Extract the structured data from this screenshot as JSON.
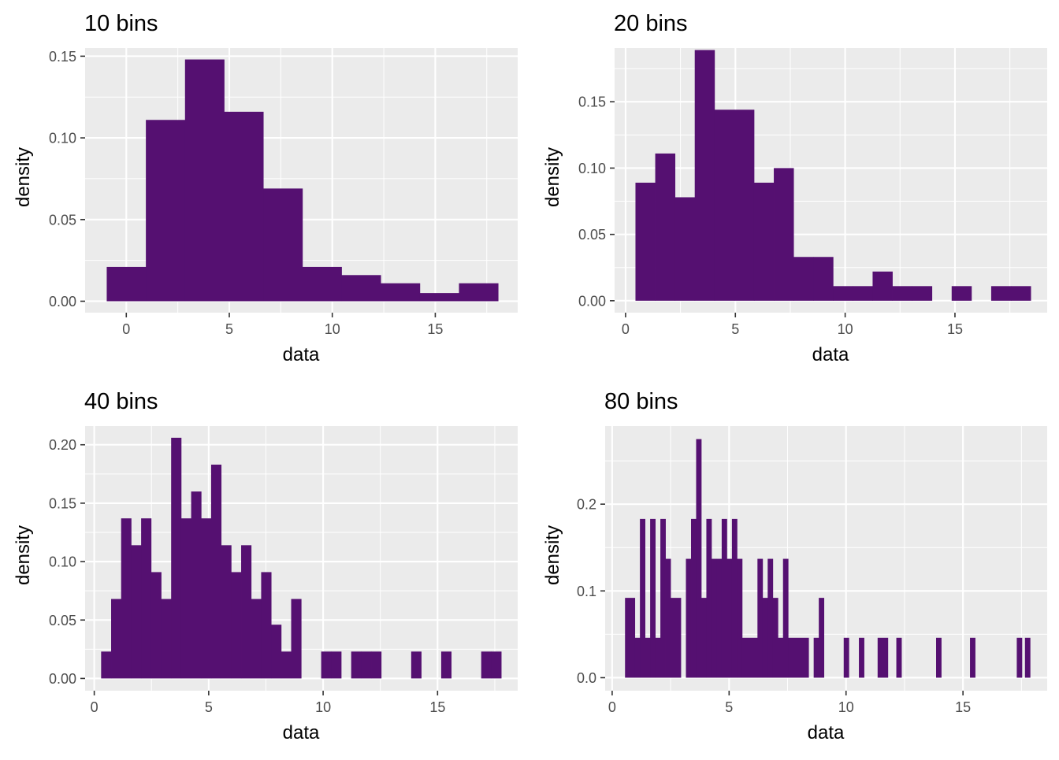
{
  "colors": {
    "bar_fill": "#551071",
    "panel_background": "#ebebeb",
    "grid": "#ffffff"
  },
  "chart_data": [
    {
      "type": "bar",
      "title": "10 bins",
      "xlabel": "data",
      "ylabel": "density",
      "xlim": [
        -2,
        19.0
      ],
      "ylim": [
        -0.007,
        0.155
      ],
      "x_ticks": [
        0,
        5,
        10,
        15
      ],
      "x_tick_labels": [
        "0",
        "5",
        "10",
        "15"
      ],
      "y_ticks": [
        0,
        0.05,
        0.1,
        0.15
      ],
      "y_tick_labels": [
        "0.00",
        "0.05",
        "0.10",
        "0.15"
      ],
      "grid": true,
      "bin_width": 1.9,
      "bins": [
        {
          "x0": -0.95,
          "x1": 0.95,
          "density": 0.021
        },
        {
          "x0": 0.95,
          "x1": 2.85,
          "density": 0.111
        },
        {
          "x0": 2.85,
          "x1": 4.75,
          "density": 0.148
        },
        {
          "x0": 4.75,
          "x1": 6.65,
          "density": 0.116
        },
        {
          "x0": 6.65,
          "x1": 8.55,
          "density": 0.069
        },
        {
          "x0": 8.55,
          "x1": 10.45,
          "density": 0.021
        },
        {
          "x0": 10.45,
          "x1": 12.35,
          "density": 0.016
        },
        {
          "x0": 12.35,
          "x1": 14.25,
          "density": 0.011
        },
        {
          "x0": 14.25,
          "x1": 16.15,
          "density": 0.005
        },
        {
          "x0": 16.15,
          "x1": 18.05,
          "density": 0.011
        }
      ]
    },
    {
      "type": "bar",
      "title": "20 bins",
      "xlabel": "data",
      "ylabel": "density",
      "xlim": [
        -0.5,
        19.2
      ],
      "ylim": [
        -0.009,
        0.1905
      ],
      "x_ticks": [
        0,
        5,
        10,
        15
      ],
      "x_tick_labels": [
        "0",
        "5",
        "10",
        "15"
      ],
      "y_ticks": [
        0,
        0.05,
        0.1,
        0.15
      ],
      "y_tick_labels": [
        "0.00",
        "0.05",
        "0.10",
        "0.15"
      ],
      "grid": true,
      "bin_width": 0.9,
      "bins": [
        {
          "x0": 0.45,
          "x1": 1.35,
          "density": 0.089
        },
        {
          "x0": 1.35,
          "x1": 2.25,
          "density": 0.111
        },
        {
          "x0": 2.25,
          "x1": 3.15,
          "density": 0.078
        },
        {
          "x0": 3.15,
          "x1": 4.05,
          "density": 0.189
        },
        {
          "x0": 4.05,
          "x1": 4.95,
          "density": 0.144
        },
        {
          "x0": 4.95,
          "x1": 5.85,
          "density": 0.144
        },
        {
          "x0": 5.85,
          "x1": 6.75,
          "density": 0.089
        },
        {
          "x0": 6.75,
          "x1": 7.65,
          "density": 0.1
        },
        {
          "x0": 7.65,
          "x1": 8.55,
          "density": 0.033
        },
        {
          "x0": 8.55,
          "x1": 9.45,
          "density": 0.033
        },
        {
          "x0": 9.45,
          "x1": 10.35,
          "density": 0.011
        },
        {
          "x0": 10.35,
          "x1": 11.25,
          "density": 0.011
        },
        {
          "x0": 11.25,
          "x1": 12.15,
          "density": 0.022
        },
        {
          "x0": 12.15,
          "x1": 13.05,
          "density": 0.011
        },
        {
          "x0": 13.05,
          "x1": 13.95,
          "density": 0.011
        },
        {
          "x0": 13.95,
          "x1": 14.85,
          "density": 0.0
        },
        {
          "x0": 14.85,
          "x1": 15.75,
          "density": 0.011
        },
        {
          "x0": 15.75,
          "x1": 16.65,
          "density": 0.0
        },
        {
          "x0": 16.65,
          "x1": 17.55,
          "density": 0.011
        },
        {
          "x0": 17.55,
          "x1": 18.45,
          "density": 0.011
        }
      ]
    },
    {
      "type": "bar",
      "title": "40 bins",
      "xlabel": "data",
      "ylabel": "density",
      "xlim": [
        -0.4,
        18.5
      ],
      "ylim": [
        -0.0105,
        0.216
      ],
      "x_ticks": [
        0,
        5,
        10,
        15
      ],
      "x_tick_labels": [
        "0",
        "5",
        "10",
        "15"
      ],
      "y_ticks": [
        0,
        0.05,
        0.1,
        0.15,
        0.2
      ],
      "y_tick_labels": [
        "0.00",
        "0.05",
        "0.10",
        "0.15",
        "0.20"
      ],
      "grid": true,
      "bin_width": 0.437,
      "bins": [
        {
          "x0": 0.3,
          "x1": 0.737,
          "density": 0.023
        },
        {
          "x0": 0.737,
          "x1": 1.174,
          "density": 0.068
        },
        {
          "x0": 1.174,
          "x1": 1.611,
          "density": 0.137
        },
        {
          "x0": 1.611,
          "x1": 2.048,
          "density": 0.114
        },
        {
          "x0": 2.048,
          "x1": 2.485,
          "density": 0.137
        },
        {
          "x0": 2.485,
          "x1": 2.922,
          "density": 0.091
        },
        {
          "x0": 2.922,
          "x1": 3.359,
          "density": 0.068
        },
        {
          "x0": 3.359,
          "x1": 3.796,
          "density": 0.206
        },
        {
          "x0": 3.796,
          "x1": 4.233,
          "density": 0.137
        },
        {
          "x0": 4.233,
          "x1": 4.67,
          "density": 0.16
        },
        {
          "x0": 4.67,
          "x1": 5.107,
          "density": 0.137
        },
        {
          "x0": 5.107,
          "x1": 5.544,
          "density": 0.183
        },
        {
          "x0": 5.544,
          "x1": 5.981,
          "density": 0.114
        },
        {
          "x0": 5.981,
          "x1": 6.418,
          "density": 0.091
        },
        {
          "x0": 6.418,
          "x1": 6.855,
          "density": 0.114
        },
        {
          "x0": 6.855,
          "x1": 7.292,
          "density": 0.068
        },
        {
          "x0": 7.292,
          "x1": 7.729,
          "density": 0.091
        },
        {
          "x0": 7.729,
          "x1": 8.166,
          "density": 0.046
        },
        {
          "x0": 8.166,
          "x1": 8.603,
          "density": 0.023
        },
        {
          "x0": 8.603,
          "x1": 9.04,
          "density": 0.068
        },
        {
          "x0": 9.04,
          "x1": 9.477,
          "density": 0.0
        },
        {
          "x0": 9.477,
          "x1": 9.914,
          "density": 0.0
        },
        {
          "x0": 9.914,
          "x1": 10.351,
          "density": 0.023
        },
        {
          "x0": 10.351,
          "x1": 10.788,
          "density": 0.023
        },
        {
          "x0": 10.788,
          "x1": 11.225,
          "density": 0.0
        },
        {
          "x0": 11.225,
          "x1": 11.662,
          "density": 0.023
        },
        {
          "x0": 11.662,
          "x1": 12.099,
          "density": 0.023
        },
        {
          "x0": 12.099,
          "x1": 12.536,
          "density": 0.023
        },
        {
          "x0": 12.536,
          "x1": 12.973,
          "density": 0.0
        },
        {
          "x0": 12.973,
          "x1": 13.41,
          "density": 0.0
        },
        {
          "x0": 13.41,
          "x1": 13.847,
          "density": 0.0
        },
        {
          "x0": 13.847,
          "x1": 14.284,
          "density": 0.023
        },
        {
          "x0": 14.284,
          "x1": 14.721,
          "density": 0.0
        },
        {
          "x0": 14.721,
          "x1": 15.158,
          "density": 0.0
        },
        {
          "x0": 15.158,
          "x1": 15.595,
          "density": 0.023
        },
        {
          "x0": 15.595,
          "x1": 16.032,
          "density": 0.0
        },
        {
          "x0": 16.032,
          "x1": 16.469,
          "density": 0.0
        },
        {
          "x0": 16.469,
          "x1": 16.906,
          "density": 0.0
        },
        {
          "x0": 16.906,
          "x1": 17.343,
          "density": 0.023
        },
        {
          "x0": 17.343,
          "x1": 17.78,
          "density": 0.023
        }
      ]
    },
    {
      "type": "bar",
      "title": "80 bins",
      "xlabel": "data",
      "ylabel": "density",
      "xlim": [
        -0.3,
        18.6
      ],
      "ylim": [
        -0.015,
        0.29
      ],
      "x_ticks": [
        0,
        5,
        10,
        15
      ],
      "x_tick_labels": [
        "0",
        "5",
        "10",
        "15"
      ],
      "y_ticks": [
        0,
        0.1,
        0.2
      ],
      "y_tick_labels": [
        "0.0",
        "0.1",
        "0.2"
      ],
      "grid": true,
      "bin_width": 0.2185,
      "bins": [
        {
          "x0": 0.55,
          "x1": 0.9685,
          "density": 0.092
        },
        {
          "x0": 0.9685,
          "x1": 1.187,
          "density": 0.046
        },
        {
          "x0": 1.187,
          "x1": 1.4055,
          "density": 0.183
        },
        {
          "x0": 1.4055,
          "x1": 1.624,
          "density": 0.046
        },
        {
          "x0": 1.624,
          "x1": 1.8425,
          "density": 0.183
        },
        {
          "x0": 1.8425,
          "x1": 2.061,
          "density": 0.046
        },
        {
          "x0": 2.061,
          "x1": 2.2795,
          "density": 0.183
        },
        {
          "x0": 2.2795,
          "x1": 2.498,
          "density": 0.137
        },
        {
          "x0": 2.498,
          "x1": 2.935,
          "density": 0.092
        },
        {
          "x0": 2.935,
          "x1": 3.1535,
          "density": 0.0
        },
        {
          "x0": 3.1535,
          "x1": 3.372,
          "density": 0.137
        },
        {
          "x0": 3.372,
          "x1": 3.5905,
          "density": 0.183
        },
        {
          "x0": 3.5905,
          "x1": 3.809,
          "density": 0.275
        },
        {
          "x0": 3.809,
          "x1": 4.0275,
          "density": 0.092
        },
        {
          "x0": 4.0275,
          "x1": 4.246,
          "density": 0.183
        },
        {
          "x0": 4.246,
          "x1": 4.4645,
          "density": 0.137
        },
        {
          "x0": 4.4645,
          "x1": 4.683,
          "density": 0.137
        },
        {
          "x0": 4.683,
          "x1": 4.9015,
          "density": 0.183
        },
        {
          "x0": 4.9015,
          "x1": 5.12,
          "density": 0.137
        },
        {
          "x0": 5.12,
          "x1": 5.3385,
          "density": 0.183
        },
        {
          "x0": 5.3385,
          "x1": 5.557,
          "density": 0.137
        },
        {
          "x0": 5.557,
          "x1": 6.2125,
          "density": 0.046
        },
        {
          "x0": 6.2125,
          "x1": 6.431,
          "density": 0.137
        },
        {
          "x0": 6.431,
          "x1": 6.6495,
          "density": 0.092
        },
        {
          "x0": 6.6495,
          "x1": 6.868,
          "density": 0.137
        },
        {
          "x0": 6.868,
          "x1": 7.0865,
          "density": 0.092
        },
        {
          "x0": 7.0865,
          "x1": 7.305,
          "density": 0.046
        },
        {
          "x0": 7.305,
          "x1": 7.5235,
          "density": 0.137
        },
        {
          "x0": 7.5235,
          "x1": 8.398,
          "density": 0.046
        },
        {
          "x0": 8.398,
          "x1": 8.6165,
          "density": 0.0
        },
        {
          "x0": 8.6165,
          "x1": 8.835,
          "density": 0.046
        },
        {
          "x0": 8.835,
          "x1": 9.0535,
          "density": 0.092
        },
        {
          "x0": 9.9,
          "x1": 10.1185,
          "density": 0.046
        },
        {
          "x0": 10.55,
          "x1": 10.7685,
          "density": 0.046
        },
        {
          "x0": 11.35,
          "x1": 11.787,
          "density": 0.046
        },
        {
          "x0": 12.15,
          "x1": 12.3685,
          "density": 0.046
        },
        {
          "x0": 13.85,
          "x1": 14.0685,
          "density": 0.046
        },
        {
          "x0": 15.3,
          "x1": 15.5185,
          "density": 0.046
        },
        {
          "x0": 17.3,
          "x1": 17.5185,
          "density": 0.046
        },
        {
          "x0": 17.65,
          "x1": 17.8685,
          "density": 0.046
        }
      ]
    }
  ]
}
